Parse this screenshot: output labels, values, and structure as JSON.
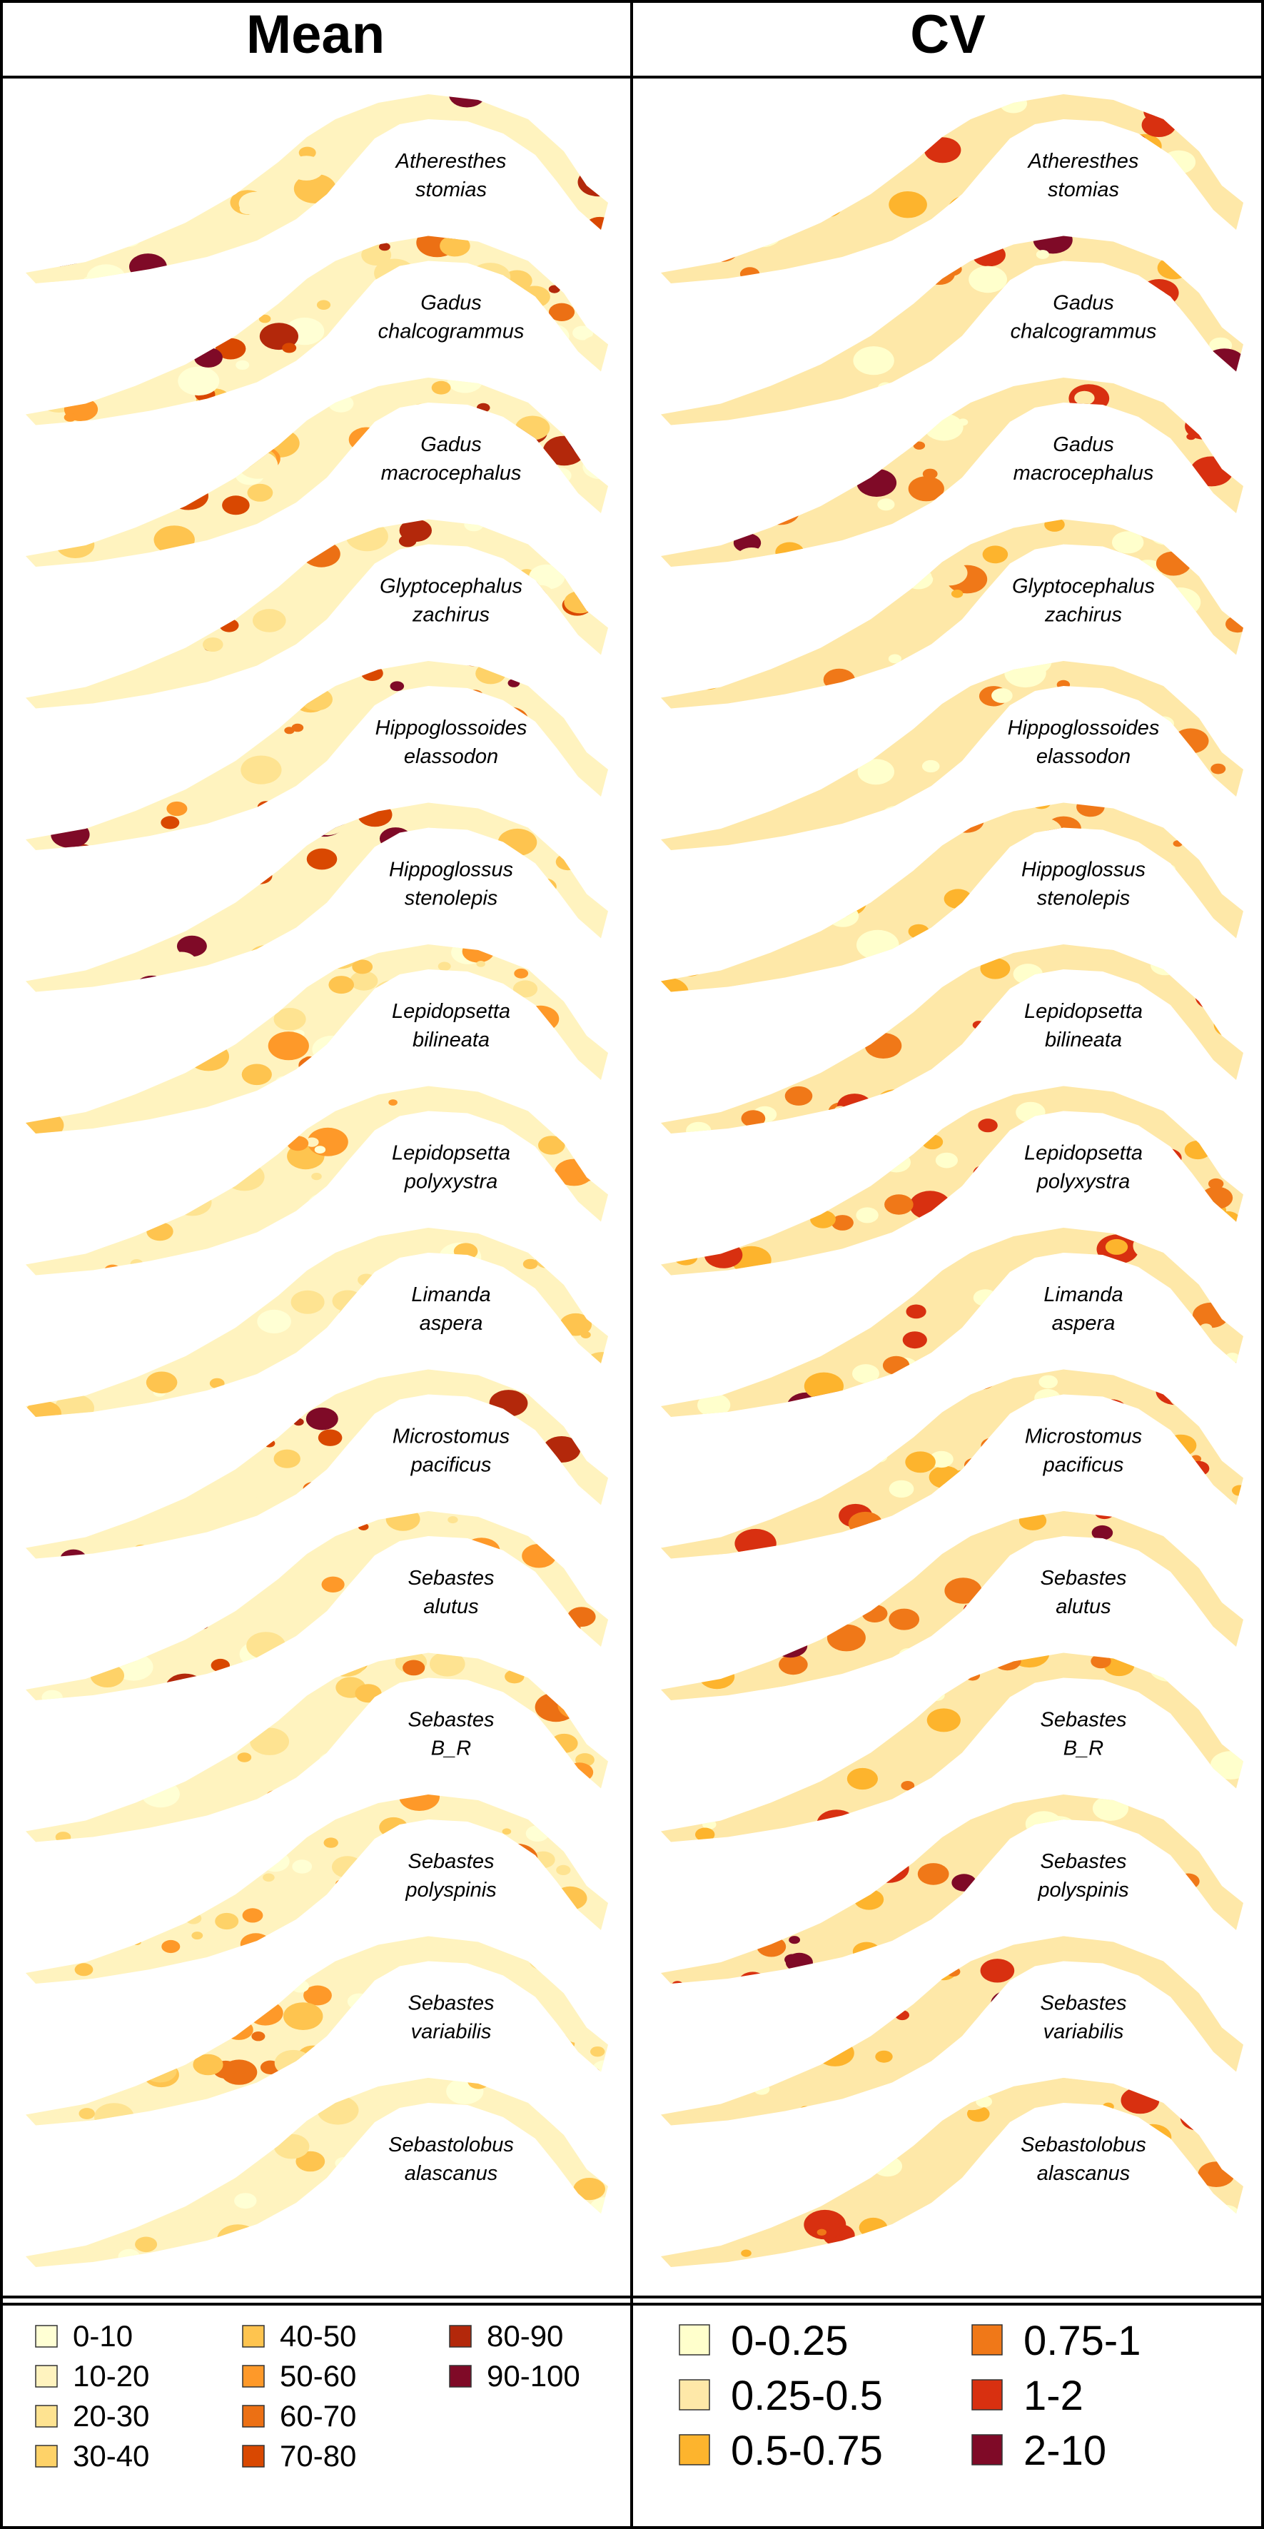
{
  "headers": {
    "left": "Mean",
    "right": "CV"
  },
  "species": [
    [
      "Atheresthes",
      "stomias"
    ],
    [
      "Gadus",
      "chalcogrammus"
    ],
    [
      "Gadus",
      "macrocephalus"
    ],
    [
      "Glyptocephalus",
      "zachirus"
    ],
    [
      "Hippoglossoides",
      "elassodon"
    ],
    [
      "Hippoglossus",
      "stenolepis"
    ],
    [
      "Lepidopsetta",
      "bilineata"
    ],
    [
      "Lepidopsetta",
      "polyxystra"
    ],
    [
      "Limanda",
      "aspera"
    ],
    [
      "Microstomus",
      "pacificus"
    ],
    [
      "Sebastes",
      "alutus"
    ],
    [
      "Sebastes",
      "B_R"
    ],
    [
      "Sebastes",
      "polyspinis"
    ],
    [
      "Sebastes",
      "variabilis"
    ],
    [
      "Sebastolobus",
      "alascanus"
    ]
  ],
  "legend_mean": [
    {
      "label": "0-10",
      "color": "#ffffd4"
    },
    {
      "label": "10-20",
      "color": "#fff3bf"
    },
    {
      "label": "20-30",
      "color": "#fee391"
    },
    {
      "label": "30-40",
      "color": "#fed268"
    },
    {
      "label": "40-50",
      "color": "#fec44f"
    },
    {
      "label": "50-60",
      "color": "#fe9929"
    },
    {
      "label": "60-70",
      "color": "#ec7014"
    },
    {
      "label": "70-80",
      "color": "#d94801"
    },
    {
      "label": "80-90",
      "color": "#b3280b"
    },
    {
      "label": "90-100",
      "color": "#7f0a27"
    }
  ],
  "legend_cv": [
    {
      "label": "0-0.25",
      "color": "#ffffcc"
    },
    {
      "label": "0.25-0.5",
      "color": "#fee8a8"
    },
    {
      "label": "0.5-0.75",
      "color": "#fdb42d"
    },
    {
      "label": "0.75-1",
      "color": "#f07818"
    },
    {
      "label": "1-2",
      "color": "#d83010"
    },
    {
      "label": "2-10",
      "color": "#7f0a27"
    }
  ],
  "cell_intensity": {
    "mean": [
      0.8,
      0.6,
      0.6,
      0.75,
      0.65,
      0.75,
      0.35,
      0.25,
      0.15,
      0.6,
      0.5,
      0.35,
      0.3,
      0.35,
      0.15
    ],
    "cv": [
      0.45,
      0.7,
      0.55,
      0.35,
      0.35,
      0.25,
      0.4,
      0.55,
      0.55,
      0.4,
      0.6,
      0.45,
      0.7,
      0.75,
      0.55
    ]
  }
}
